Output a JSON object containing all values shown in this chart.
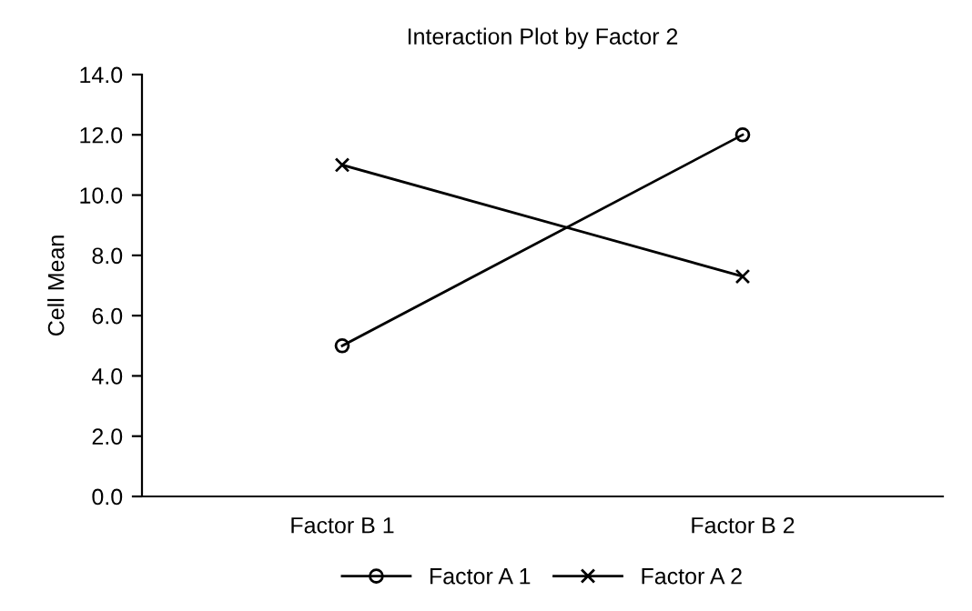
{
  "chart_data": {
    "type": "line",
    "title": "Interaction Plot by Factor 2",
    "ylabel": "Cell Mean",
    "categories": [
      "Factor B 1",
      "Factor B 2"
    ],
    "series": [
      {
        "name": "Factor A 1",
        "color": "#000000",
        "values": [
          5.0,
          12.0
        ],
        "marker": "circle"
      },
      {
        "name": "Factor A 2",
        "color": "#000000",
        "values": [
          11.0,
          7.3
        ],
        "marker": "cross"
      }
    ],
    "ylim": [
      0,
      14
    ],
    "yticks": [
      {
        "value": 0,
        "label": "0.0"
      },
      {
        "value": 2,
        "label": "2.0"
      },
      {
        "value": 4,
        "label": "4.0"
      },
      {
        "value": 6,
        "label": "6.0"
      },
      {
        "value": 8,
        "label": "8.0"
      },
      {
        "value": 10,
        "label": "10.0"
      },
      {
        "value": 12,
        "label": "12.0"
      },
      {
        "value": 14,
        "label": "14.0"
      }
    ],
    "grid": false,
    "legend": "bottom",
    "line_style": "solid"
  }
}
